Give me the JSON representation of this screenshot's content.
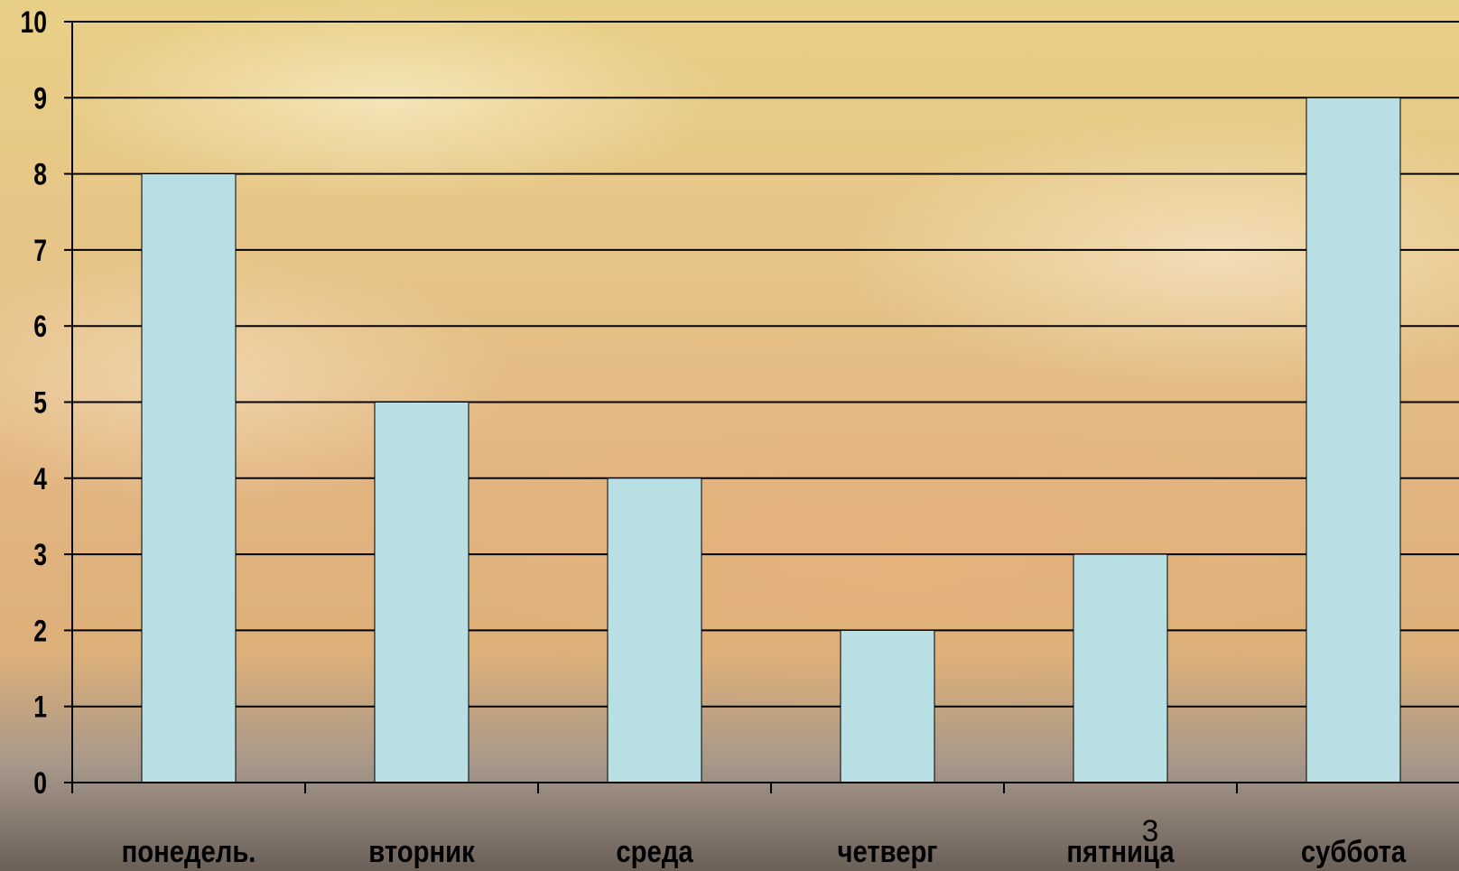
{
  "chart_data": {
    "type": "bar",
    "title": "",
    "xlabel": "",
    "ylabel": "",
    "categories": [
      "понедель.",
      "вторник",
      "среда",
      "четверг",
      "пятница",
      "суббота"
    ],
    "values": [
      8,
      5,
      4,
      2,
      3,
      9
    ],
    "ylim": [
      0,
      10
    ],
    "yticks": [
      "0",
      "1",
      "2",
      "3",
      "4",
      "5",
      "6",
      "7",
      "8",
      "9",
      "10"
    ],
    "grid": true,
    "legend": "none",
    "bar_color": "#b8e0e4"
  },
  "slide_number": "3"
}
